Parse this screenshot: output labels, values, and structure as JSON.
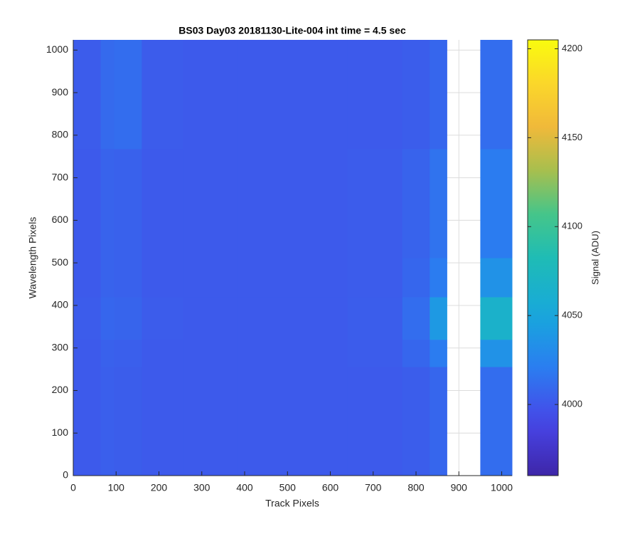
{
  "chart_data": {
    "type": "heatmap",
    "title": "BS03 Day03 20181130-Lite-004 int time = 4.5 sec",
    "xlabel": "Track Pixels",
    "ylabel": "Wavelength Pixels",
    "colorbar_label": "Signal (ADU)",
    "colormap": "parula",
    "grid": true,
    "xlim": [
      0,
      1024
    ],
    "ylim": [
      0,
      1024
    ],
    "xticks": [
      0,
      100,
      200,
      300,
      400,
      500,
      600,
      700,
      800,
      900,
      1000
    ],
    "yticks": [
      0,
      100,
      200,
      300,
      400,
      500,
      600,
      700,
      800,
      900,
      1000
    ],
    "clim": [
      3960,
      4205
    ],
    "cticks": [
      4000,
      4050,
      4100,
      4150,
      4200
    ],
    "x_edges": [
      0,
      64,
      96,
      160,
      256,
      384,
      512,
      640,
      768,
      832,
      872,
      950,
      1024
    ],
    "y_edges": [
      0,
      256,
      320,
      420,
      512,
      768,
      1024
    ],
    "z": [
      [
        4001,
        4004,
        4003,
        4001,
        4001,
        4001,
        4001,
        4001,
        4003,
        4008,
        null,
        4012
      ],
      [
        4001,
        4005,
        4004,
        4001,
        4001,
        4001,
        4001,
        4002,
        4008,
        4020,
        null,
        4035
      ],
      [
        4002,
        4008,
        4007,
        4002,
        4001,
        4001,
        4001,
        4003,
        4012,
        4040,
        null,
        4065
      ],
      [
        4001,
        4006,
        4005,
        4001,
        4001,
        4001,
        4001,
        4002,
        4008,
        4020,
        null,
        4035
      ],
      [
        4001,
        4006,
        4005,
        4001,
        4001,
        4001,
        4001,
        4002,
        4006,
        4015,
        null,
        4020
      ],
      [
        4002,
        4010,
        4012,
        4002,
        4001,
        4001,
        4001,
        4001,
        4003,
        4008,
        null,
        4012
      ]
    ]
  }
}
